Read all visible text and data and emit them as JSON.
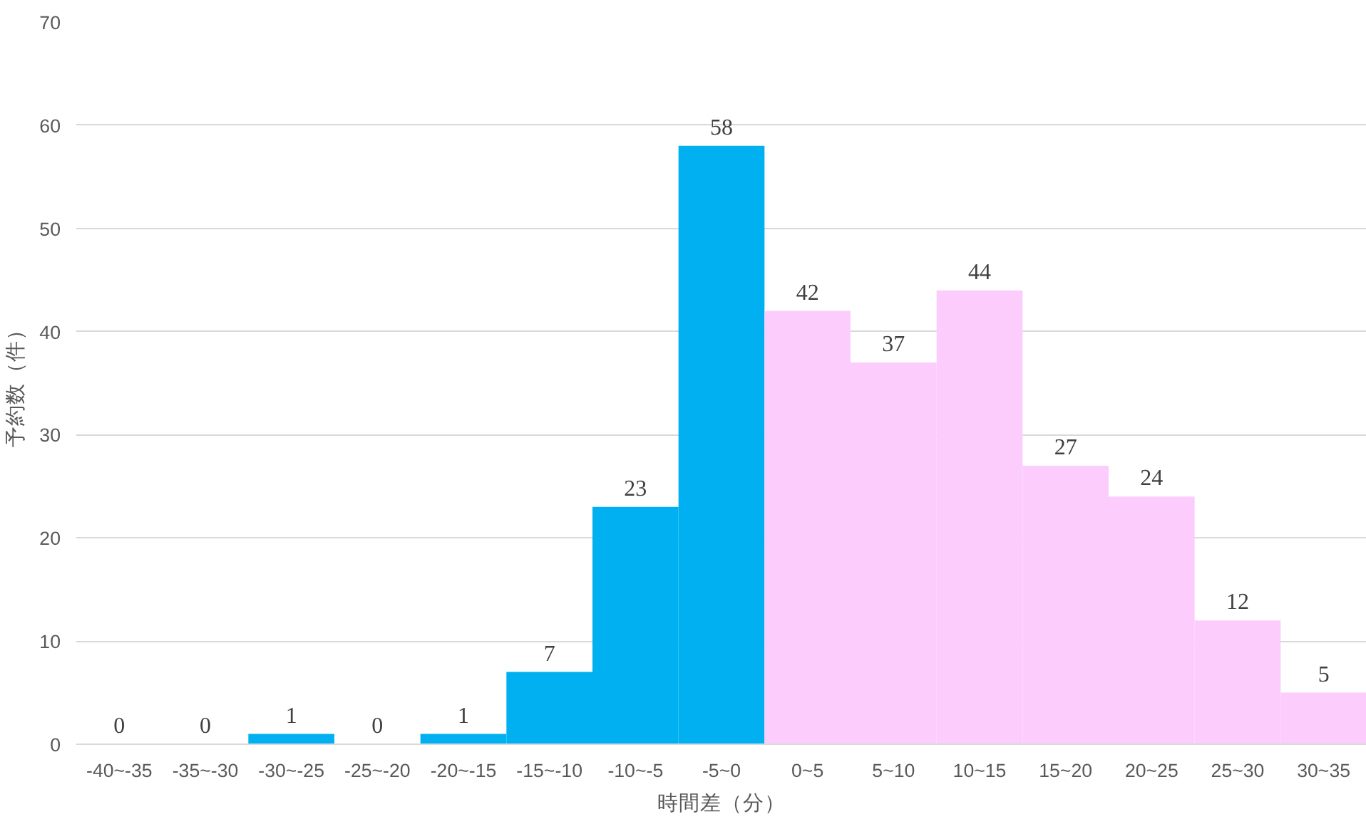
{
  "chart_data": {
    "type": "bar",
    "xlabel": "時間差（分）",
    "ylabel": "予約数（件）",
    "categories": [
      "-40~-35",
      "-35~-30",
      "-30~-25",
      "-25~-20",
      "-20~-15",
      "-15~-10",
      "-10~-5",
      "-5~0",
      "0~5",
      "5~10",
      "10~15",
      "15~20",
      "20~25",
      "25~30",
      "30~35"
    ],
    "values": [
      0,
      0,
      1,
      0,
      1,
      7,
      23,
      58,
      42,
      37,
      44,
      27,
      24,
      12,
      5
    ],
    "colors": [
      "#00b0f0",
      "#00b0f0",
      "#00b0f0",
      "#00b0f0",
      "#00b0f0",
      "#00b0f0",
      "#00b0f0",
      "#00b0f0",
      "#fccdfc",
      "#fccdfc",
      "#fccdfc",
      "#fccdfc",
      "#fccdfc",
      "#fccdfc",
      "#fccdfc"
    ],
    "ylim": [
      0,
      70
    ],
    "yticks": [
      0,
      10,
      20,
      30,
      40,
      50,
      60,
      70
    ],
    "grid": "y",
    "data_labels": true
  }
}
